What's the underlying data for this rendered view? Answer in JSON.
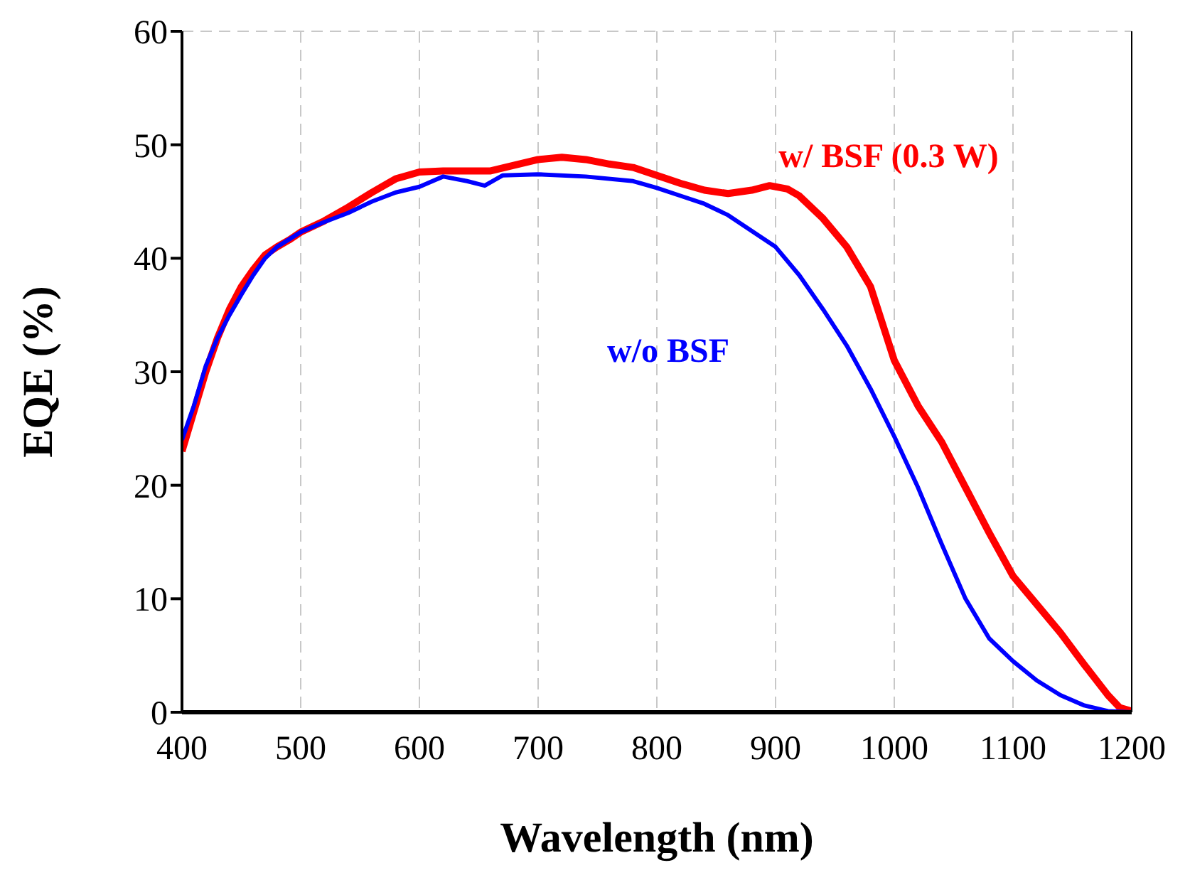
{
  "chart_data": {
    "type": "line",
    "xlabel": "Wavelength (nm)",
    "ylabel": "EQE (%)",
    "xlim": [
      400,
      1200
    ],
    "xticks": [
      400,
      500,
      600,
      700,
      800,
      900,
      1000,
      1100,
      1200
    ],
    "ylim": [
      0,
      60
    ],
    "yticks": [
      0,
      10,
      20,
      30,
      40,
      50,
      60
    ],
    "grid": true,
    "legend": false,
    "marker": "none",
    "line_style": "solid",
    "series": [
      {
        "name": "w/ BSF (0.3 W)",
        "color": "#ff0000",
        "x": [
          400,
          410,
          420,
          430,
          440,
          450,
          460,
          470,
          480,
          490,
          500,
          520,
          540,
          560,
          580,
          600,
          620,
          640,
          660,
          680,
          700,
          720,
          740,
          760,
          780,
          800,
          820,
          840,
          860,
          880,
          895,
          910,
          920,
          940,
          960,
          980,
          1000,
          1020,
          1040,
          1060,
          1080,
          1100,
          1120,
          1140,
          1160,
          1180,
          1190,
          1200
        ],
        "values": [
          23,
          26.5,
          30,
          33,
          35.5,
          37.5,
          39,
          40.3,
          41,
          41.6,
          42.3,
          43.3,
          44.5,
          45.8,
          47,
          47.6,
          47.7,
          47.7,
          47.7,
          48.2,
          48.7,
          48.9,
          48.7,
          48.3,
          48,
          47.3,
          46.6,
          46,
          45.7,
          46,
          46.4,
          46.1,
          45.5,
          43.5,
          41,
          37.5,
          31,
          27,
          23.8,
          19.8,
          15.8,
          12,
          9.5,
          7,
          4.2,
          1.5,
          0.4,
          0.1
        ]
      },
      {
        "name": "w/o BSF",
        "color": "#0000ff",
        "x": [
          400,
          410,
          420,
          430,
          440,
          450,
          460,
          470,
          480,
          500,
          520,
          540,
          560,
          580,
          600,
          620,
          640,
          655,
          670,
          700,
          740,
          780,
          800,
          820,
          840,
          860,
          880,
          900,
          920,
          940,
          960,
          980,
          1000,
          1020,
          1040,
          1060,
          1080,
          1100,
          1120,
          1140,
          1160,
          1180,
          1200
        ],
        "values": [
          24,
          27,
          30.5,
          33,
          35,
          36.8,
          38.5,
          40,
          41,
          42.3,
          43.2,
          44,
          45,
          45.8,
          46.3,
          47.2,
          46.8,
          46.4,
          47.3,
          47.4,
          47.2,
          46.8,
          46.2,
          45.5,
          44.8,
          43.8,
          42.4,
          41,
          38.5,
          35.5,
          32.3,
          28.5,
          24.3,
          19.8,
          14.8,
          10,
          6.5,
          4.5,
          2.8,
          1.5,
          0.6,
          0.1,
          0
        ]
      }
    ]
  }
}
